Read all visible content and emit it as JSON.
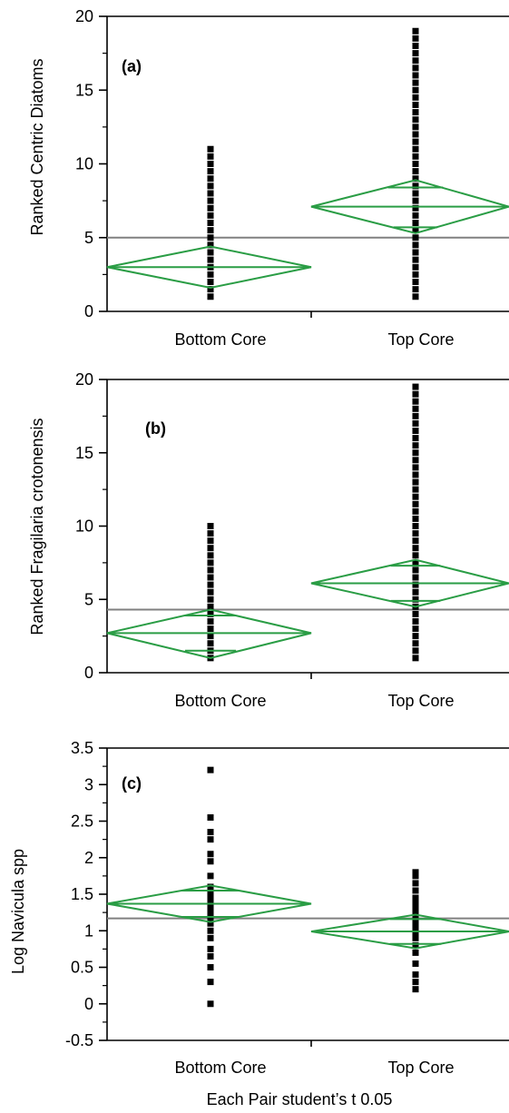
{
  "footer": {
    "xlabel": "Each Pair student’s t 0.05"
  },
  "colors": {
    "diamond": "#2a9d45",
    "grand_mean_line": "#808080",
    "points": "#000000"
  },
  "chart_data": [
    {
      "type": "scatter",
      "panel_label": "(a)",
      "ylabel": "Ranked Centric Diatoms",
      "xlabel": "",
      "categories": [
        "Bottom Core",
        "Top Core"
      ],
      "ylim": [
        0,
        20
      ],
      "yticks": [
        "0",
        "5",
        "10",
        "15",
        "20"
      ],
      "ytick_values": [
        0,
        5,
        10,
        15,
        20
      ],
      "grand_mean": 5.0,
      "groups": [
        {
          "category": "Bottom Core",
          "mean": 3.0,
          "ci_lower": 1.6,
          "ci_upper": 4.4,
          "overlap_lower": 1.6,
          "overlap_upper": 4.4,
          "points": [
            1,
            1.5,
            2,
            2.5,
            3,
            3.5,
            4,
            4.5,
            5,
            5.5,
            6,
            6.5,
            7,
            7.5,
            8,
            8.5,
            9,
            9.5,
            10,
            10.5,
            11
          ]
        },
        {
          "category": "Top Core",
          "mean": 7.1,
          "ci_lower": 5.3,
          "ci_upper": 8.9,
          "overlap_lower": 5.7,
          "overlap_upper": 8.4,
          "points": [
            1,
            1.5,
            2,
            2.5,
            3,
            3.5,
            4,
            4.5,
            5,
            5.5,
            6,
            6.5,
            7,
            7.5,
            8,
            8.5,
            9,
            9.5,
            10,
            10.5,
            11,
            11.5,
            12,
            12.5,
            13,
            13.5,
            14,
            14.5,
            15,
            15.5,
            16,
            16.5,
            17,
            17.5,
            18,
            18.5,
            19
          ]
        }
      ]
    },
    {
      "type": "scatter",
      "panel_label": "(b)",
      "ylabel": "Ranked Fragilaria crotonensis",
      "xlabel": "",
      "categories": [
        "Bottom Core",
        "Top Core"
      ],
      "ylim": [
        0,
        20
      ],
      "yticks": [
        "0",
        "5",
        "10",
        "15",
        "20"
      ],
      "ytick_values": [
        0,
        5,
        10,
        15,
        20
      ],
      "grand_mean": 4.3,
      "groups": [
        {
          "category": "Bottom Core",
          "mean": 2.7,
          "ci_lower": 1.0,
          "ci_upper": 4.3,
          "overlap_lower": 1.5,
          "overlap_upper": 3.9,
          "points": [
            1,
            1.5,
            2,
            2.5,
            3,
            3.5,
            4,
            4.5,
            5,
            5.5,
            6,
            6.5,
            7,
            7.5,
            8,
            8.5,
            9,
            9.5,
            10
          ]
        },
        {
          "category": "Top Core",
          "mean": 6.1,
          "ci_lower": 4.5,
          "ci_upper": 7.7,
          "overlap_lower": 4.9,
          "overlap_upper": 7.3,
          "points": [
            1,
            1.5,
            2,
            2.5,
            3,
            3.5,
            4,
            4.5,
            5,
            5.5,
            6,
            6.5,
            7,
            7.5,
            8,
            8.5,
            9,
            9.5,
            10,
            10.5,
            11,
            11.5,
            12,
            12.5,
            13,
            13.5,
            14,
            14.5,
            15,
            15.5,
            16,
            16.5,
            17,
            17.5,
            18,
            18.5,
            19,
            19.5
          ]
        }
      ]
    },
    {
      "type": "scatter",
      "panel_label": "(c)",
      "ylabel": "Log Navicula spp",
      "xlabel": "",
      "categories": [
        "Bottom Core",
        "Top Core"
      ],
      "ylim": [
        -0.5,
        3.5
      ],
      "yticks": [
        "-0.5",
        "0",
        "0.5",
        "1",
        "1.5",
        "2",
        "2.5",
        "3",
        "3.5"
      ],
      "ytick_values": [
        -0.5,
        0,
        0.5,
        1,
        1.5,
        2,
        2.5,
        3,
        3.5
      ],
      "grand_mean": 1.17,
      "groups": [
        {
          "category": "Bottom Core",
          "mean": 1.37,
          "ci_lower": 1.12,
          "ci_upper": 1.62,
          "overlap_lower": 1.19,
          "overlap_upper": 1.55,
          "points": [
            0.0,
            0.3,
            0.5,
            0.65,
            0.75,
            0.9,
            1.0,
            1.1,
            1.15,
            1.2,
            1.25,
            1.3,
            1.35,
            1.4,
            1.45,
            1.5,
            1.55,
            1.6,
            1.75,
            1.95,
            2.05,
            2.25,
            2.35,
            2.55,
            3.2
          ]
        },
        {
          "category": "Top Core",
          "mean": 0.99,
          "ci_lower": 0.76,
          "ci_upper": 1.22,
          "overlap_lower": 0.82,
          "overlap_upper": 1.16,
          "points": [
            0.2,
            0.3,
            0.4,
            0.55,
            0.7,
            0.8,
            0.9,
            0.95,
            1.0,
            1.05,
            1.1,
            1.15,
            1.2,
            1.25,
            1.3,
            1.35,
            1.4,
            1.45,
            1.55,
            1.65,
            1.75,
            1.8
          ]
        }
      ]
    }
  ]
}
